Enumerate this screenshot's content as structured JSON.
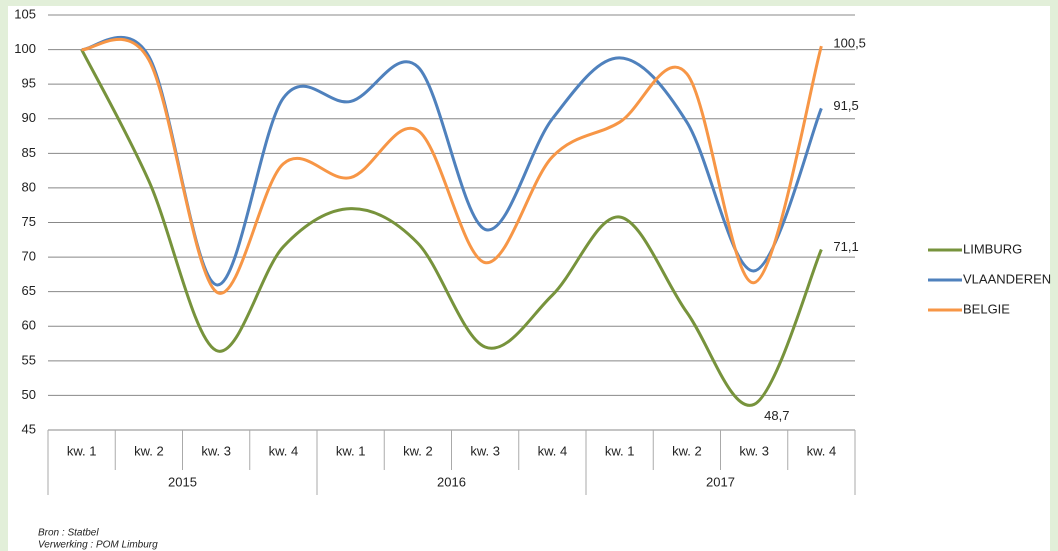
{
  "chart_data": {
    "type": "line",
    "categories": [
      "kw. 1",
      "kw. 2",
      "kw. 3",
      "kw. 4",
      "kw. 1",
      "kw. 2",
      "kw. 3",
      "kw. 4",
      "kw. 1",
      "kw. 2",
      "kw. 3",
      "kw. 4"
    ],
    "year_labels": [
      "2015",
      "2016",
      "2017"
    ],
    "series": [
      {
        "name": "LIMBURG",
        "color": "#77933c",
        "values": [
          100,
          81,
          56.5,
          71.5,
          77,
          72,
          57,
          64.5,
          75.8,
          62,
          48.7,
          71.1
        ],
        "value_labels": [
          null,
          null,
          null,
          null,
          null,
          null,
          null,
          null,
          null,
          null,
          "48,7",
          "71,1"
        ]
      },
      {
        "name": "VLAANDEREN",
        "color": "#4f81bd",
        "values": [
          100,
          99,
          66,
          93,
          92.5,
          97.5,
          74,
          90,
          98.8,
          89.5,
          68,
          91.5
        ],
        "value_labels": [
          null,
          null,
          null,
          null,
          null,
          null,
          null,
          null,
          null,
          null,
          null,
          "91,5"
        ]
      },
      {
        "name": "BELGIE",
        "color": "#f79646",
        "values": [
          100,
          98.5,
          65,
          83.5,
          81.5,
          88.3,
          69.2,
          84.5,
          89.5,
          96.5,
          66.3,
          100.5
        ],
        "value_labels": [
          null,
          null,
          null,
          null,
          null,
          null,
          null,
          null,
          null,
          null,
          null,
          "100,5"
        ]
      }
    ],
    "ylim": [
      45,
      105
    ],
    "yticks": [
      45,
      50,
      55,
      60,
      65,
      70,
      75,
      80,
      85,
      90,
      95,
      100,
      105
    ],
    "grid": true,
    "smooth": true,
    "legend": "right",
    "source": [
      "Bron : Statbel",
      "Verwerking : POM Limburg"
    ]
  }
}
